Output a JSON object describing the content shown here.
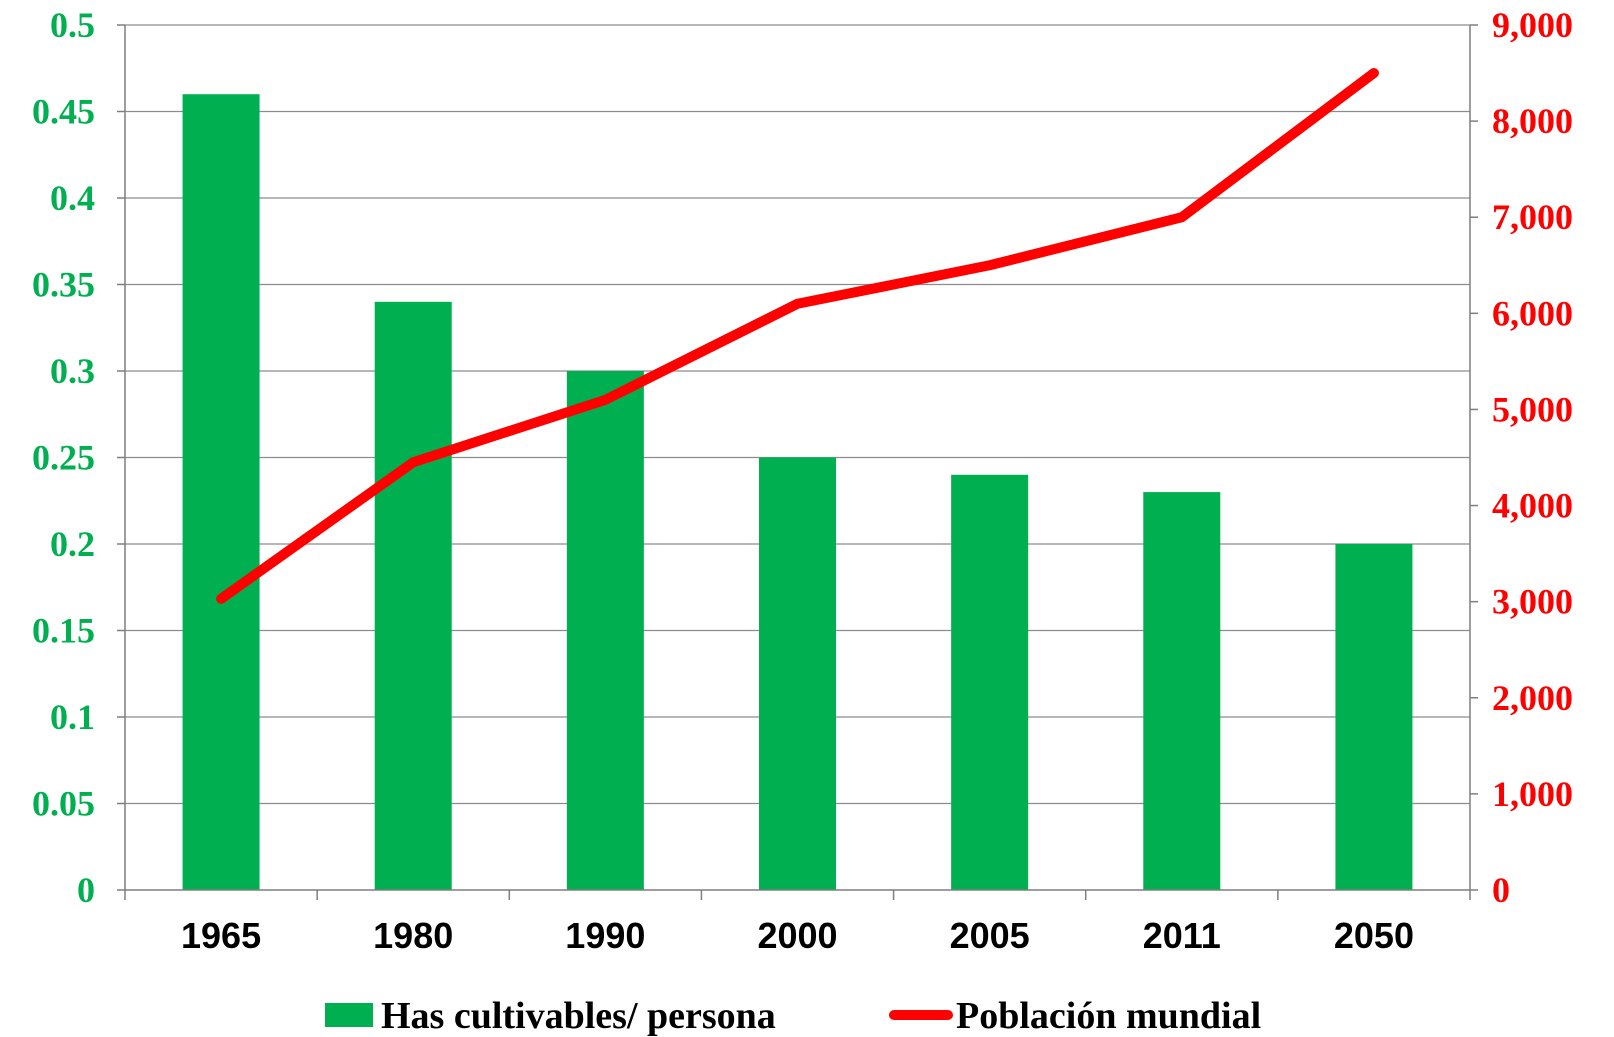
{
  "chart_data": {
    "type": "bar",
    "title": "",
    "xlabel": "",
    "categories": [
      "1965",
      "1980",
      "1990",
      "2000",
      "2005",
      "2011",
      "2050"
    ],
    "series": [
      {
        "name": "Has cultivables/ persona",
        "type": "bar",
        "axis": "left",
        "color": "#00b050",
        "values": [
          0.46,
          0.34,
          0.3,
          0.25,
          0.24,
          0.23,
          0.2
        ]
      },
      {
        "name": "Población mundial",
        "type": "line",
        "axis": "right",
        "color": "#ff0000",
        "values": [
          3030,
          4450,
          5100,
          6100,
          6500,
          7000,
          8500
        ]
      }
    ],
    "y_left": {
      "range": [
        0,
        0.5
      ],
      "ticks": [
        "0",
        "0.05",
        "0.1",
        "0.15",
        "0.2",
        "0.25",
        "0.3",
        "0.35",
        "0.4",
        "0.45",
        "0.5"
      ],
      "color": "#00b050"
    },
    "y_right": {
      "range": [
        0,
        9000
      ],
      "ticks": [
        "0",
        "1,000",
        "2,000",
        "3,000",
        "4,000",
        "5,000",
        "6,000",
        "7,000",
        "8,000",
        "9,000"
      ],
      "color": "#ff0000"
    },
    "grid": true,
    "legend_position": "bottom"
  }
}
